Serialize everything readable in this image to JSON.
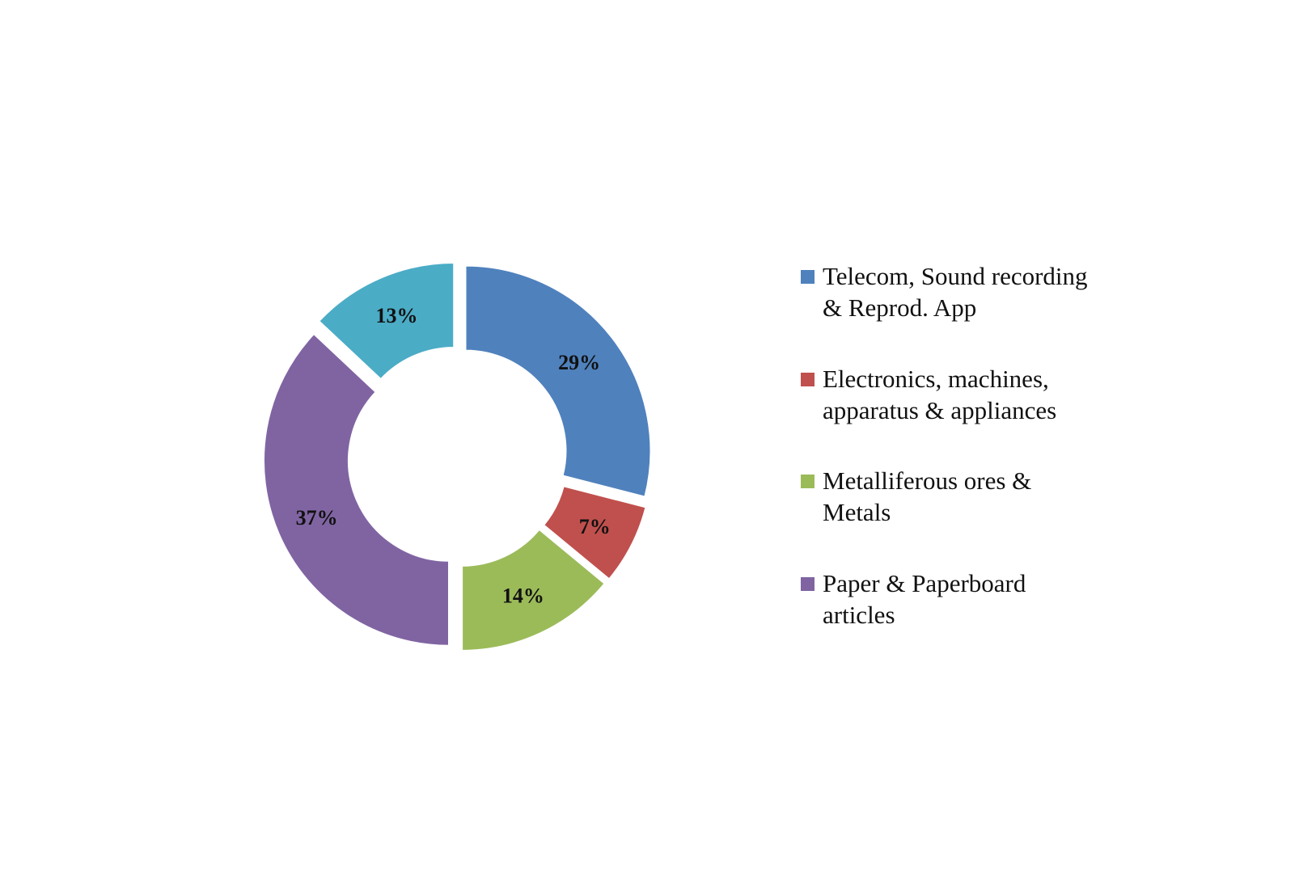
{
  "chart_data": {
    "type": "pie",
    "variant": "donut-exploded",
    "slices": [
      {
        "name": "Telecom, Sound recording & Reprod. App",
        "value": 29,
        "label": "29%",
        "color": "#4F81BD"
      },
      {
        "name": "Electronics, machines, apparatus & appliances",
        "value": 7,
        "label": "7%",
        "color": "#C0504D"
      },
      {
        "name": "Metalliferous ores & Metals",
        "value": 14,
        "label": "14%",
        "color": "#9BBB59"
      },
      {
        "name": "Paper & Paperboard articles",
        "value": 37,
        "label": "37%",
        "color": "#8064A2"
      },
      {
        "name": "",
        "value": 13,
        "label": "13%",
        "color": "#4BACC6"
      }
    ],
    "legend": {
      "placement": "right",
      "entries": [
        {
          "text": "Telecom, Sound recording & Reprod. App",
          "color": "#4F81BD"
        },
        {
          "text": "Electronics, machines, apparatus & appliances",
          "color": "#C0504D"
        },
        {
          "text": "Metalliferous ores & Metals",
          "color": "#9BBB59"
        },
        {
          "text": "Paper & Paperboard articles",
          "color": "#8064A2"
        }
      ]
    }
  }
}
